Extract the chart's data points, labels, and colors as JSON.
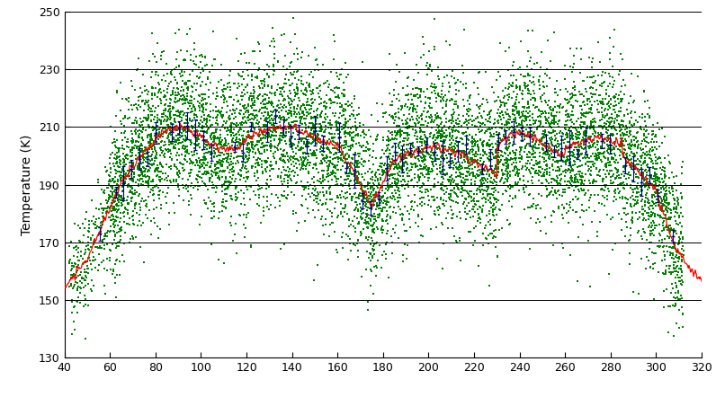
{
  "xlim": [
    40,
    320
  ],
  "ylim": [
    130,
    250
  ],
  "xticks": [
    40,
    60,
    80,
    100,
    120,
    140,
    160,
    180,
    200,
    220,
    240,
    260,
    280,
    300,
    320
  ],
  "yticks": [
    130,
    150,
    170,
    190,
    210,
    230,
    250
  ],
  "ylabel": "Temperature (K)",
  "green_dot_color": "#008000",
  "red_line_color": "#ff0000",
  "navy_point_color": "#000080",
  "background_color": "#ffffff",
  "figsize": [
    7.96,
    4.42
  ],
  "dpi": 100
}
